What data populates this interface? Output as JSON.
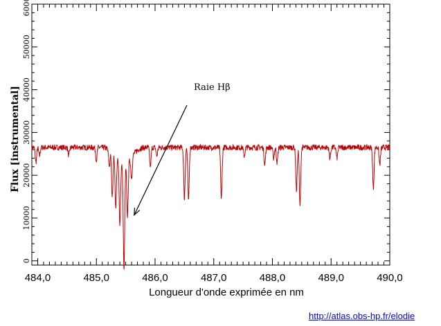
{
  "chart_data": {
    "type": "line",
    "title": "",
    "xlabel": "Longueur d'onde exprimée en nm",
    "ylabel": "Flux [instrumental]",
    "xlim": [
      483.9,
      490.0
    ],
    "ylim": [
      -1000,
      60000
    ],
    "xticks": [
      484.0,
      485.0,
      486.0,
      487.0,
      488.0,
      489.0,
      490.0
    ],
    "xtick_labels": [
      "484,0",
      "485,0",
      "486,0",
      "487,0",
      "488,0",
      "489,0",
      "490,0"
    ],
    "yticks": [
      0,
      10000,
      20000,
      30000,
      40000,
      50000,
      60000
    ],
    "ytick_labels": [
      "0",
      "10000",
      "20000",
      "30000",
      "40000",
      "50000",
      "60000"
    ],
    "grid": false,
    "line_color": "#c00000",
    "continuum": 26500,
    "absorption_lines": [
      {
        "x": 483.97,
        "flux": 23000
      },
      {
        "x": 484.03,
        "flux": 24500
      },
      {
        "x": 484.53,
        "flux": 24500
      },
      {
        "x": 485.0,
        "flux": 23500
      },
      {
        "x": 485.22,
        "flux": 22500
      },
      {
        "x": 485.27,
        "flux": 16000
      },
      {
        "x": 485.33,
        "flux": 14500
      },
      {
        "x": 485.4,
        "flux": 12000
      },
      {
        "x": 485.47,
        "flux": 1800
      },
      {
        "x": 485.53,
        "flux": 14000
      },
      {
        "x": 485.6,
        "flux": 21500
      },
      {
        "x": 485.92,
        "flux": 22000
      },
      {
        "x": 486.03,
        "flux": 24500
      },
      {
        "x": 486.5,
        "flux": 14500
      },
      {
        "x": 486.57,
        "flux": 14000
      },
      {
        "x": 487.13,
        "flux": 14500
      },
      {
        "x": 487.52,
        "flux": 24500
      },
      {
        "x": 487.87,
        "flux": 22500
      },
      {
        "x": 488.02,
        "flux": 24000
      },
      {
        "x": 488.08,
        "flux": 23000
      },
      {
        "x": 488.41,
        "flux": 16500
      },
      {
        "x": 488.47,
        "flux": 13000
      },
      {
        "x": 488.98,
        "flux": 24000
      },
      {
        "x": 489.1,
        "flux": 24000
      },
      {
        "x": 489.72,
        "flux": 17000
      },
      {
        "x": 489.83,
        "flux": 22500
      }
    ],
    "annotations": [
      {
        "text": "Raie Hβ",
        "x": 485.62,
        "y": 11000
      }
    ]
  },
  "credit": "http://atlas.obs-hp.fr/elodie"
}
